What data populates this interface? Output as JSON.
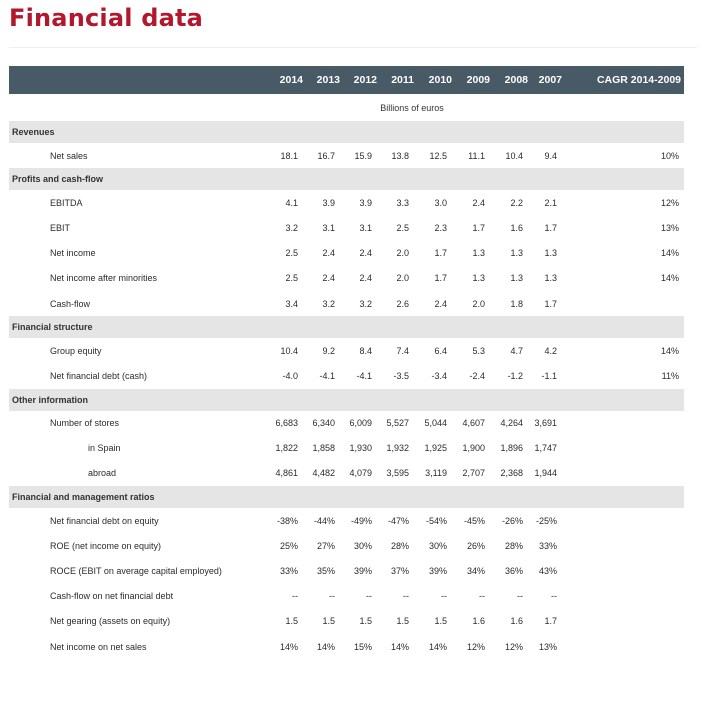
{
  "page_title": "Financial data",
  "table": {
    "years": [
      "2014",
      "2013",
      "2012",
      "2011",
      "2010",
      "2009",
      "2008",
      "2007"
    ],
    "cagr_header": "CAGR 2014-2009",
    "unit": "Billions of euros",
    "sections": [
      {
        "title": "Revenues",
        "rows": [
          {
            "label": "Net sales",
            "values": [
              "18.1",
              "16.7",
              "15.9",
              "13.8",
              "12.5",
              "11.1",
              "10.4",
              "9.4"
            ],
            "cagr": "10%"
          }
        ]
      },
      {
        "title": "Profits and cash-flow",
        "rows": [
          {
            "label": "EBITDA",
            "values": [
              "4.1",
              "3.9",
              "3.9",
              "3.3",
              "3.0",
              "2.4",
              "2.2",
              "2.1"
            ],
            "cagr": "12%"
          },
          {
            "label": "EBIT",
            "values": [
              "3.2",
              "3.1",
              "3.1",
              "2.5",
              "2.3",
              "1.7",
              "1.6",
              "1.7"
            ],
            "cagr": "13%"
          },
          {
            "label": "Net income",
            "values": [
              "2.5",
              "2.4",
              "2.4",
              "2.0",
              "1.7",
              "1.3",
              "1.3",
              "1.3"
            ],
            "cagr": "14%"
          },
          {
            "label": "Net income after minorities",
            "values": [
              "2.5",
              "2.4",
              "2.4",
              "2.0",
              "1.7",
              "1.3",
              "1.3",
              "1.3"
            ],
            "cagr": "14%"
          },
          {
            "label": "Cash-flow",
            "values": [
              "3.4",
              "3.2",
              "3.2",
              "2.6",
              "2.4",
              "2.0",
              "1.8",
              "1.7"
            ],
            "cagr": ""
          }
        ]
      },
      {
        "title": "Financial structure",
        "rows": [
          {
            "label": "Group equity",
            "values": [
              "10.4",
              "9.2",
              "8.4",
              "7.4",
              "6.4",
              "5.3",
              "4.7",
              "4.2"
            ],
            "cagr": "14%"
          },
          {
            "label": "Net financial debt (cash)",
            "values": [
              "-4.0",
              "-4.1",
              "-4.1",
              "-3.5",
              "-3.4",
              "-2.4",
              "-1.2",
              "-1.1"
            ],
            "cagr": "11%"
          }
        ]
      },
      {
        "title": "Other information",
        "rows": [
          {
            "label": "Number of stores",
            "values": [
              "6,683",
              "6,340",
              "6,009",
              "5,527",
              "5,044",
              "4,607",
              "4,264",
              "3,691"
            ],
            "cagr": ""
          },
          {
            "label": "in Spain",
            "sub": true,
            "values": [
              "1,822",
              "1,858",
              "1,930",
              "1,932",
              "1,925",
              "1,900",
              "1,896",
              "1,747"
            ],
            "cagr": ""
          },
          {
            "label": "abroad",
            "sub": true,
            "values": [
              "4,861",
              "4,482",
              "4,079",
              "3,595",
              "3,119",
              "2,707",
              "2,368",
              "1,944"
            ],
            "cagr": ""
          }
        ]
      },
      {
        "title": "Financial and management ratios",
        "rows": [
          {
            "label": "Net financial debt on equity",
            "values": [
              "-38%",
              "-44%",
              "-49%",
              "-47%",
              "-54%",
              "-45%",
              "-26%",
              "-25%"
            ],
            "cagr": ""
          },
          {
            "label": "ROE (net income on equity)",
            "values": [
              "25%",
              "27%",
              "30%",
              "28%",
              "30%",
              "26%",
              "28%",
              "33%"
            ],
            "cagr": ""
          },
          {
            "label": "ROCE (EBIT on average capital employed)",
            "values": [
              "33%",
              "35%",
              "39%",
              "37%",
              "39%",
              "34%",
              "36%",
              "43%"
            ],
            "cagr": ""
          },
          {
            "label": "Cash-flow on net financial debt",
            "values": [
              "--",
              "--",
              "--",
              "--",
              "--",
              "--",
              "--",
              "--"
            ],
            "cagr": ""
          },
          {
            "label": "Net gearing (assets on equity)",
            "values": [
              "1.5",
              "1.5",
              "1.5",
              "1.5",
              "1.5",
              "1.6",
              "1.6",
              "1.7"
            ],
            "cagr": ""
          },
          {
            "label": "Net income on net sales",
            "values": [
              "14%",
              "14%",
              "15%",
              "14%",
              "14%",
              "12%",
              "12%",
              "13%"
            ],
            "cagr": ""
          }
        ]
      }
    ]
  }
}
